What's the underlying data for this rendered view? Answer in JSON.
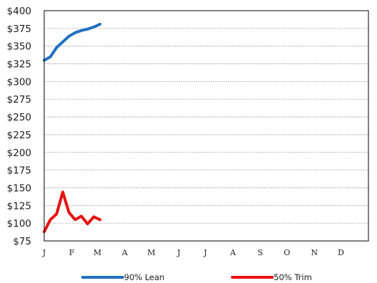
{
  "chart_data": {
    "type": "line",
    "categories": [
      "J",
      "F",
      "M",
      "A",
      "M",
      "J",
      "J",
      "A",
      "S",
      "O",
      "N",
      "D"
    ],
    "ylim": [
      75,
      400
    ],
    "yticks": [
      75,
      100,
      125,
      150,
      175,
      200,
      225,
      250,
      275,
      300,
      325,
      350,
      375,
      400
    ],
    "ytick_labels": [
      "$75",
      "$100",
      "$125",
      "$150",
      "$175",
      "$200",
      "$225",
      "$250",
      "$275",
      "$300",
      "$325",
      "$350",
      "$375",
      "$400"
    ],
    "grid": true,
    "legend_position": "bottom",
    "series": [
      {
        "name": "90% Lean",
        "color": "#1f6fc0",
        "x": [
          "2024-01-01",
          "2024-01-08",
          "2024-01-15",
          "2024-01-22",
          "2024-01-29",
          "2024-02-05",
          "2024-02-12",
          "2024-02-19",
          "2024-02-26",
          "2024-03-04"
        ],
        "y": [
          330,
          335,
          348,
          356,
          364,
          369,
          372,
          374,
          377,
          381
        ]
      },
      {
        "name": "50% Trim",
        "color": "#e81010",
        "x": [
          "2024-01-01",
          "2024-01-08",
          "2024-01-15",
          "2024-01-22",
          "2024-01-29",
          "2024-02-05",
          "2024-02-12",
          "2024-02-19",
          "2024-02-26",
          "2024-03-04"
        ],
        "y": [
          88,
          105,
          113,
          144,
          115,
          105,
          110,
          99,
          109,
          105
        ]
      }
    ]
  }
}
